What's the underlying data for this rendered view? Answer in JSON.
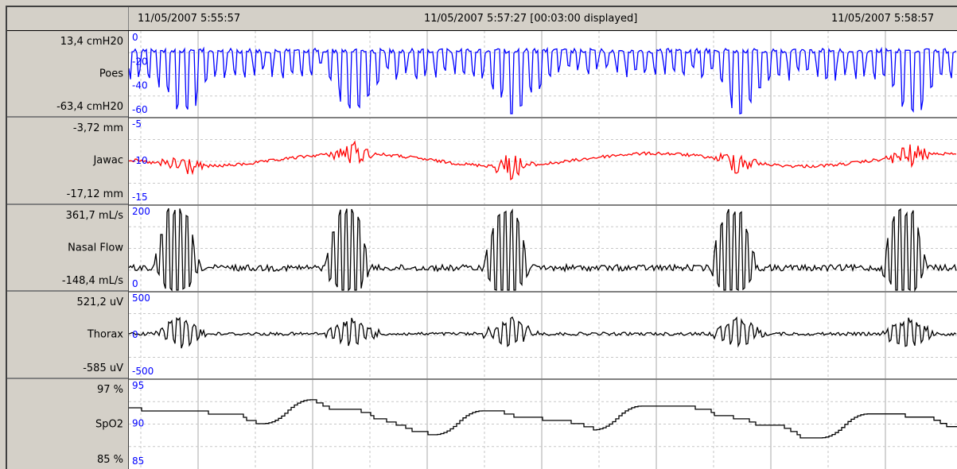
{
  "header": {
    "time_left": "11/05/2007 5:55:57",
    "time_center": "11/05/2007 5:57:27 [00:03:00 displayed]",
    "time_right": "11/05/2007 5:58:57"
  },
  "channels": [
    {
      "name": "Poes",
      "max": "13,4 cmH20",
      "min": "-63,4 cmH20",
      "color": "#0000ff",
      "axis_ticks": [
        "0",
        "-20",
        "-40",
        "-60"
      ]
    },
    {
      "name": "Jawac",
      "max": "-3,72 mm",
      "min": "-17,12 mm",
      "color": "#ff0000",
      "axis_ticks": [
        "-5",
        "-10",
        "-15"
      ]
    },
    {
      "name": "Nasal Flow",
      "max": "361,7 mL/s",
      "min": "-148,4 mL/s",
      "color": "#000000",
      "axis_ticks": [
        "200",
        "0"
      ]
    },
    {
      "name": "Thorax",
      "max": "521,2 uV",
      "min": "-585 uV",
      "color": "#000000",
      "axis_ticks": [
        "500",
        "0",
        "-500"
      ]
    },
    {
      "name": "SpO2",
      "max": "97  %",
      "min": "85  %",
      "color": "#000000",
      "axis_ticks": [
        "95",
        "90",
        "85"
      ]
    }
  ],
  "colors": {
    "axis_text": "#0000ff",
    "grid": "#a0a0a0",
    "panel": "#d4d0c8"
  }
}
